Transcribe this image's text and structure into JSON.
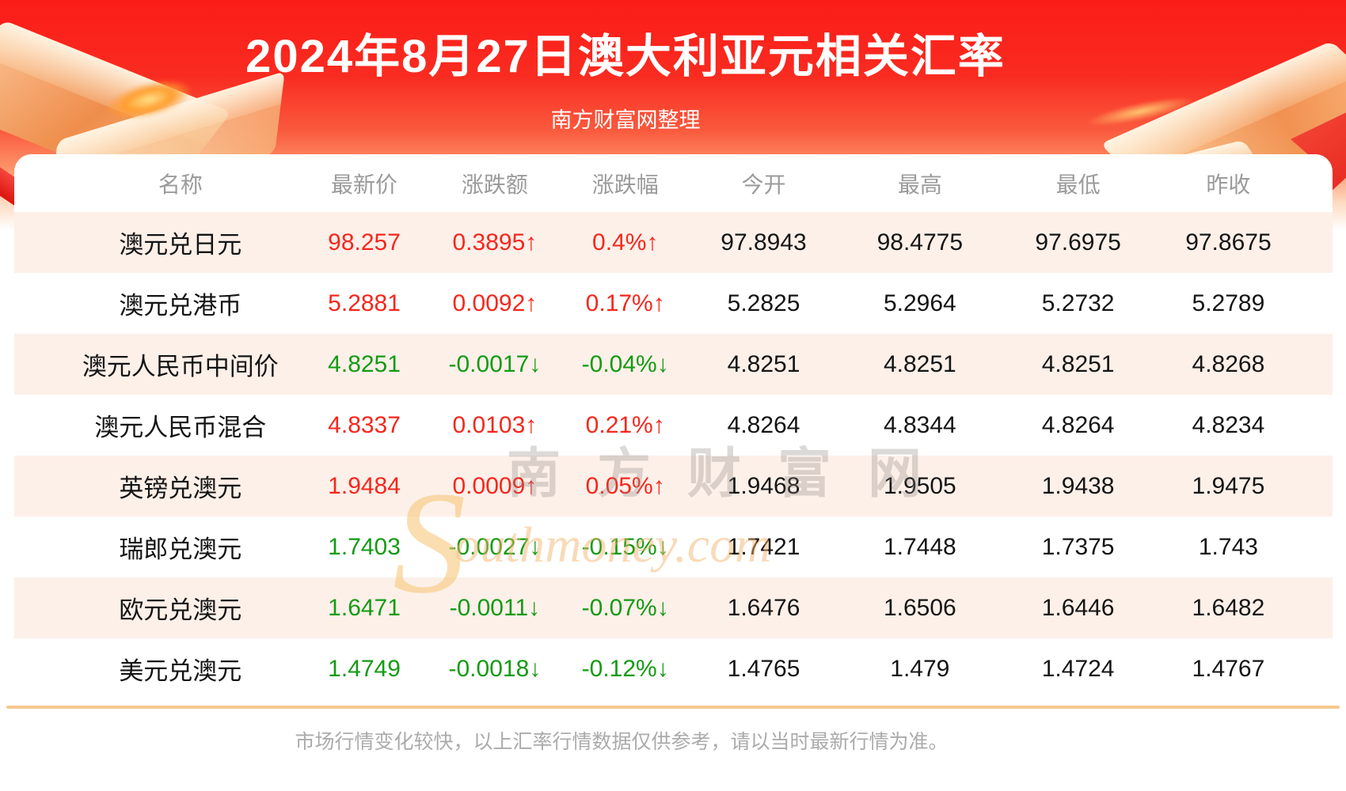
{
  "header": {
    "title": "2024年8月27日澳大利亚元相关汇率",
    "subtitle": "南方财富网整理"
  },
  "table": {
    "columns": [
      "名称",
      "最新价",
      "涨跌额",
      "涨跌幅",
      "今开",
      "最高",
      "最低",
      "昨收"
    ],
    "rows": [
      {
        "name": "澳元兑日元",
        "latest": "98.257",
        "change": "0.3895↑",
        "change_pct": "0.4%↑",
        "open": "97.8943",
        "high": "98.4775",
        "low": "97.6975",
        "prev_close": "97.8675",
        "trend": "up"
      },
      {
        "name": "澳元兑港币",
        "latest": "5.2881",
        "change": "0.0092↑",
        "change_pct": "0.17%↑",
        "open": "5.2825",
        "high": "5.2964",
        "low": "5.2732",
        "prev_close": "5.2789",
        "trend": "up"
      },
      {
        "name": "澳元人民币中间价",
        "latest": "4.8251",
        "change": "-0.0017↓",
        "change_pct": "-0.04%↓",
        "open": "4.8251",
        "high": "4.8251",
        "low": "4.8251",
        "prev_close": "4.8268",
        "trend": "down"
      },
      {
        "name": "澳元人民币混合",
        "latest": "4.8337",
        "change": "0.0103↑",
        "change_pct": "0.21%↑",
        "open": "4.8264",
        "high": "4.8344",
        "low": "4.8264",
        "prev_close": "4.8234",
        "trend": "up"
      },
      {
        "name": "英镑兑澳元",
        "latest": "1.9484",
        "change": "0.0009↑",
        "change_pct": "0.05%↑",
        "open": "1.9468",
        "high": "1.9505",
        "low": "1.9438",
        "prev_close": "1.9475",
        "trend": "up"
      },
      {
        "name": "瑞郎兑澳元",
        "latest": "1.7403",
        "change": "-0.0027↓",
        "change_pct": "-0.15%↓",
        "open": "1.7421",
        "high": "1.7448",
        "low": "1.7375",
        "prev_close": "1.743",
        "trend": "down"
      },
      {
        "name": "欧元兑澳元",
        "latest": "1.6471",
        "change": "-0.0011↓",
        "change_pct": "-0.07%↓",
        "open": "1.6476",
        "high": "1.6506",
        "low": "1.6446",
        "prev_close": "1.6482",
        "trend": "down"
      },
      {
        "name": "美元兑澳元",
        "latest": "1.4749",
        "change": "-0.0018↓",
        "change_pct": "-0.12%↓",
        "open": "1.4765",
        "high": "1.479",
        "low": "1.4724",
        "prev_close": "1.4767",
        "trend": "down"
      }
    ]
  },
  "watermark": {
    "cn": "南方财富网",
    "s": "S",
    "en": "outhmoney.com"
  },
  "footer": {
    "note": "市场行情变化较快，以上汇率行情数据仅供参考，请以当时最新行情为准。"
  },
  "colors": {
    "up": "#f5271d",
    "down": "#149b14",
    "banner_red": "#fb1d18",
    "divider_tan": "#f6c98f",
    "stripe_pink": "#fdf0e9"
  }
}
